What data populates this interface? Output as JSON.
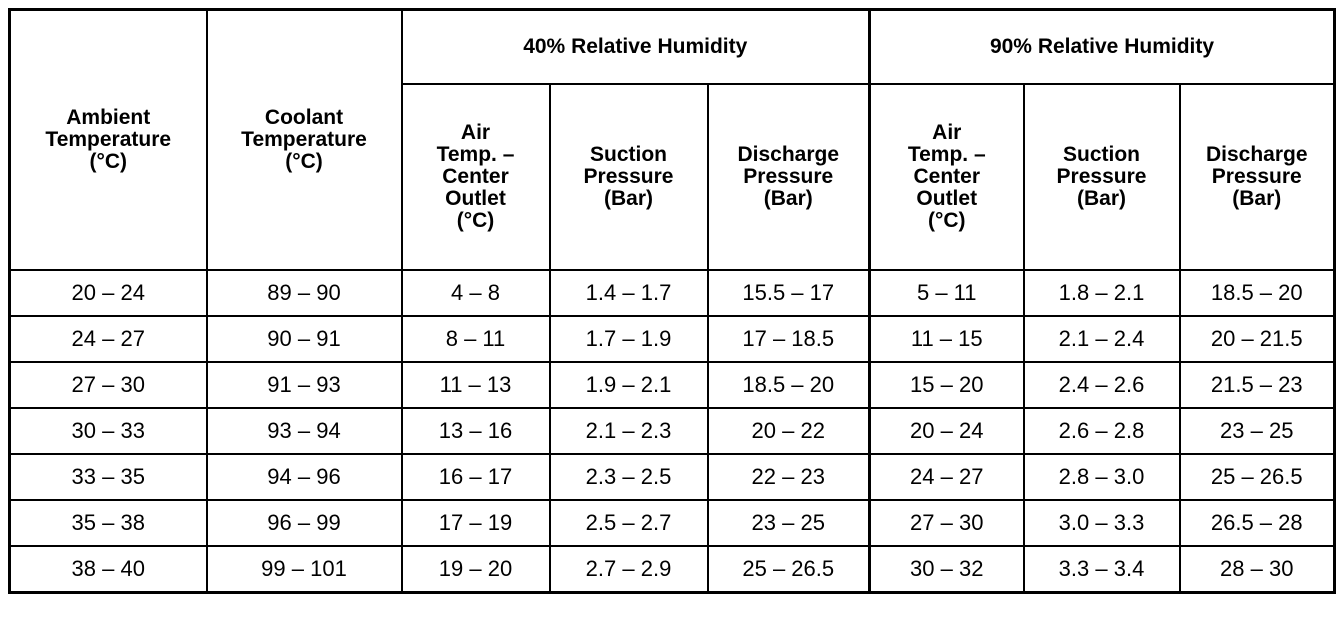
{
  "table": {
    "groups": [
      "40% Relative Humidity",
      "90% Relative Humidity"
    ],
    "columns": [
      "Ambient\nTemperature\n(°C)",
      "Coolant\nTemperature\n(°C)",
      "Air\nTemp. –\nCenter\nOutlet\n(°C)",
      "Suction\nPressure\n(Bar)",
      "Discharge\nPressure\n(Bar)",
      "Air\nTemp. –\nCenter\nOutlet\n(°C)",
      "Suction\nPressure\n(Bar)",
      "Discharge\nPressure\n(Bar)"
    ],
    "rows": [
      [
        "20 – 24",
        "89 – 90",
        "4 – 8",
        "1.4 – 1.7",
        "15.5 – 17",
        "5 – 11",
        "1.8 – 2.1",
        "18.5 – 20"
      ],
      [
        "24 – 27",
        "90 – 91",
        "8 – 11",
        "1.7 – 1.9",
        "17 – 18.5",
        "11 – 15",
        "2.1 – 2.4",
        "20 – 21.5"
      ],
      [
        "27 – 30",
        "91 – 93",
        "11 – 13",
        "1.9 – 2.1",
        "18.5 – 20",
        "15 – 20",
        "2.4 – 2.6",
        "21.5 – 23"
      ],
      [
        "30 – 33",
        "93 – 94",
        "13 – 16",
        "2.1 – 2.3",
        "20 – 22",
        "20 – 24",
        "2.6 – 2.8",
        "23 – 25"
      ],
      [
        "33 – 35",
        "94 – 96",
        "16 – 17",
        "2.3 – 2.5",
        "22 – 23",
        "24 – 27",
        "2.8 – 3.0",
        "25 – 26.5"
      ],
      [
        "35 – 38",
        "96 – 99",
        "17 – 19",
        "2.5 – 2.7",
        "23 – 25",
        "27 – 30",
        "3.0 – 3.3",
        "26.5 – 28"
      ],
      [
        "38 – 40",
        "99 – 101",
        "19 – 20",
        "2.7 – 2.9",
        "25 – 26.5",
        "30 – 32",
        "3.3 – 3.4",
        "28 – 30"
      ]
    ]
  }
}
